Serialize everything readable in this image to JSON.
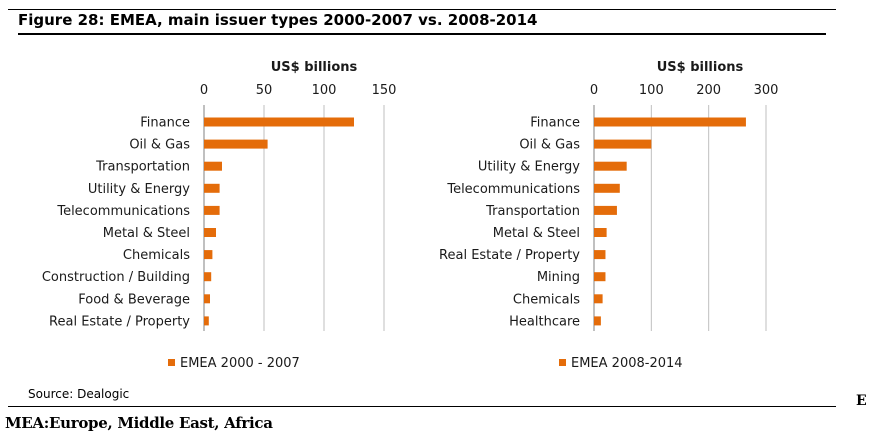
{
  "figure": {
    "title": "Figure 28: EMEA, main issuer types 2000-2007 vs. 2008-2014",
    "source": "Source: Dealogic",
    "side_letter": "E",
    "footnote": "MEA:Europe, Middle East, Africa"
  },
  "colors": {
    "bar": "#E46C0A",
    "grid": "#BFBFBF"
  },
  "chart_data": [
    {
      "type": "bar",
      "orientation": "horizontal",
      "unit_label": "US$ billions",
      "xlim": [
        0,
        150
      ],
      "ticks": [
        0,
        50,
        100,
        150
      ],
      "grid": true,
      "legend_position": "bottom",
      "categories": [
        "Finance",
        "Oil & Gas",
        "Transportation",
        "Utility & Energy",
        "Telecommunications",
        "Metal & Steel",
        "Chemicals",
        "Construction / Building",
        "Food & Beverage",
        "Real Estate / Property"
      ],
      "series": [
        {
          "name": "EMEA 2000 - 2007",
          "values": [
            125,
            53,
            15,
            13,
            13,
            10,
            7,
            6,
            5,
            4
          ]
        }
      ]
    },
    {
      "type": "bar",
      "orientation": "horizontal",
      "unit_label": "US$ billions",
      "xlim": [
        0,
        300
      ],
      "ticks": [
        0,
        100,
        200,
        300
      ],
      "grid": true,
      "legend_position": "bottom",
      "categories": [
        "Finance",
        "Oil & Gas",
        "Utility & Energy",
        "Telecommunications",
        "Transportation",
        "Metal & Steel",
        "Real Estate / Property",
        "Mining",
        "Chemicals",
        "Healthcare"
      ],
      "series": [
        {
          "name": "EMEA 2008-2014",
          "values": [
            265,
            100,
            57,
            45,
            40,
            22,
            20,
            20,
            15,
            12
          ]
        }
      ]
    }
  ]
}
